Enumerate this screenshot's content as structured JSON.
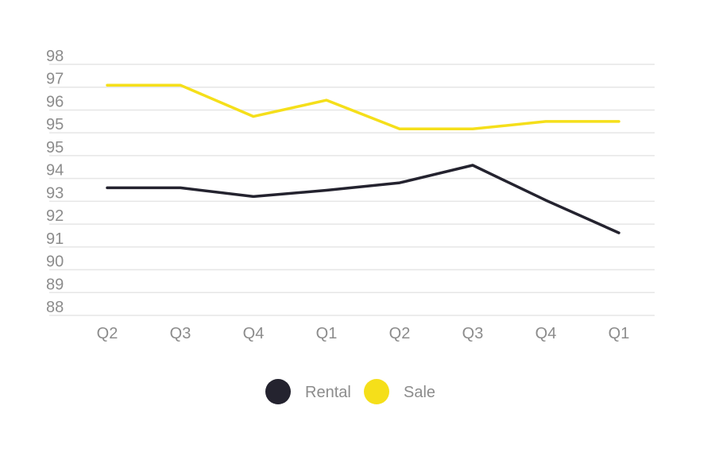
{
  "chart_data": {
    "type": "line",
    "categories": [
      "Q2",
      "Q3",
      "Q4",
      "Q1",
      "Q2",
      "Q3",
      "Q4",
      "Q1"
    ],
    "y_ticks": [
      "98",
      "97",
      "96",
      "95",
      "95",
      "94",
      "93",
      "92",
      "91",
      "90",
      "89",
      "88"
    ],
    "series": [
      {
        "name": "Rental",
        "color": "#24232f",
        "values": [
          93.1,
          93.1,
          92.75,
          93.0,
          93.3,
          94.0,
          92.6,
          91.3
        ]
      },
      {
        "name": "Sale",
        "color": "#f5df1a",
        "values": [
          97.2,
          97.2,
          95.95,
          96.6,
          95.45,
          95.45,
          95.75,
          95.75
        ]
      }
    ],
    "grid": true,
    "legend_position": "bottom-center"
  }
}
